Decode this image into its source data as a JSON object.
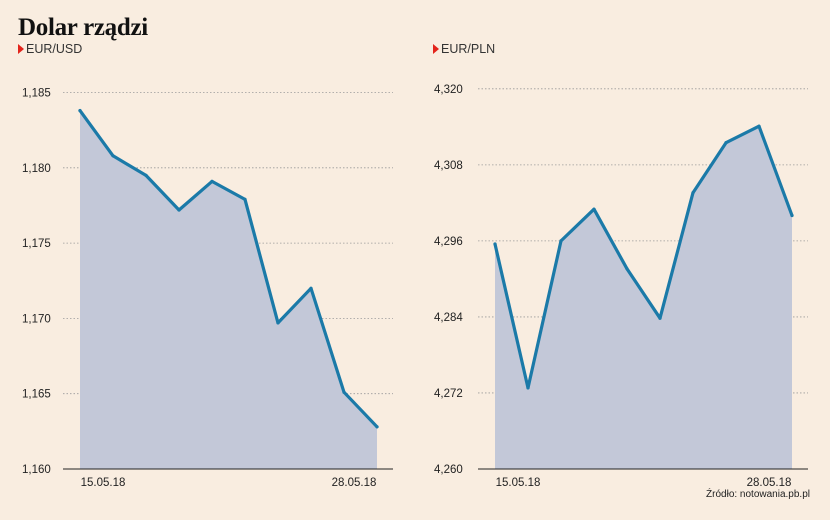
{
  "title": "Dolar rządzi",
  "source": "Źródło: notowania.pb.pl",
  "colors": {
    "line": "#1b7aa8",
    "area": "#c3c8d8",
    "grid": "#9a9a9a",
    "accent": "#e3241b",
    "background": "#f9ede0"
  },
  "chart_data": [
    {
      "type": "area",
      "label": "EUR/USD",
      "x": [
        "15.05.18",
        "16.05.18",
        "17.05.18",
        "18.05.18",
        "21.05.18",
        "22.05.18",
        "23.05.18",
        "24.05.18",
        "25.05.18",
        "28.05.18"
      ],
      "x_ticks": [
        "15.05.18",
        "28.05.18"
      ],
      "values": [
        1.1838,
        1.1808,
        1.1795,
        1.1772,
        1.1791,
        1.1779,
        1.1697,
        1.172,
        1.1651,
        1.1628
      ],
      "y_ticks": [
        "1,160",
        "1,165",
        "1,170",
        "1,175",
        "1,180",
        "1,185"
      ],
      "ylim": [
        1.16,
        1.1855
      ],
      "grid": true
    },
    {
      "type": "area",
      "label": "EUR/PLN",
      "x": [
        "15.05.18",
        "16.05.18",
        "17.05.18",
        "18.05.18",
        "21.05.18",
        "22.05.18",
        "23.05.18",
        "24.05.18",
        "25.05.18",
        "28.05.18"
      ],
      "x_ticks": [
        "15.05.18",
        "28.05.18"
      ],
      "values": [
        4.2955,
        4.2728,
        4.296,
        4.301,
        4.2916,
        4.2838,
        4.3036,
        4.3115,
        4.3141,
        4.3
      ],
      "y_ticks": [
        "4,260",
        "4,272",
        "4,284",
        "4,296",
        "4,308",
        "4,320"
      ],
      "ylim": [
        4.26,
        4.3206
      ],
      "grid": true
    }
  ]
}
